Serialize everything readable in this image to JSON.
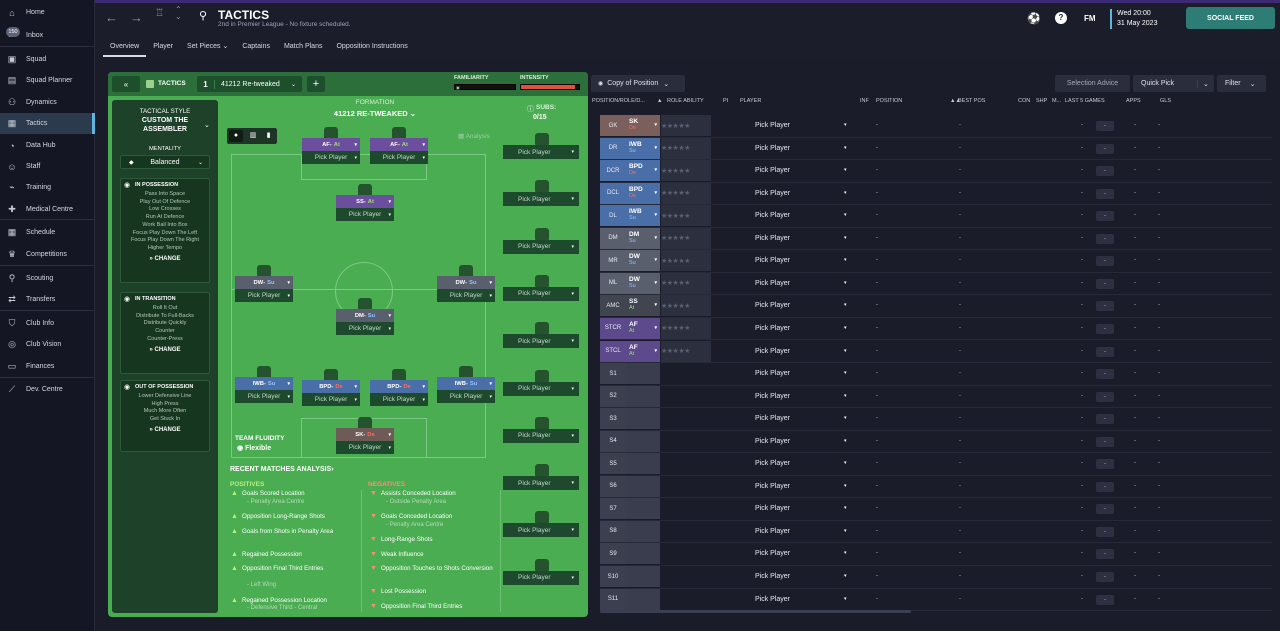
{
  "nav": {
    "items": [
      "Home",
      "Inbox",
      "Squad",
      "Squad Planner",
      "Dynamics",
      "Tactics",
      "Data Hub",
      "Staff",
      "Training",
      "Medical Centre",
      "Schedule",
      "Competitions",
      "Scouting",
      "Transfers",
      "Club Info",
      "Club Vision",
      "Finances",
      "Dev. Centre"
    ],
    "inbox_count": "150"
  },
  "header": {
    "title": "TACTICS",
    "subtitle": "2nd in Premier League - No fixture scheduled.",
    "fm": "FM",
    "time": "Wed 20:00",
    "date": "31 May 2023",
    "social": "SOCIAL FEED",
    "tabs": [
      "Overview",
      "Player",
      "Set Pieces ⌄",
      "Captains",
      "Match Plans",
      "Opposition Instructions"
    ]
  },
  "tactic": {
    "label": "TACTICS",
    "slot": "1",
    "name": "41212 Re-tweaked",
    "familiarity": "FAMILIARITY",
    "intensity": "INTENSITY",
    "intensity_level": 0.93,
    "formation_label": "FORMATION",
    "formation": "41212 RE-TWEAKED",
    "subs_label": "SUBS:",
    "subs": "0/15",
    "analysis": "Analysis"
  },
  "style": {
    "heading": "TACTICAL STYLE",
    "name": "CUSTOM THE ASSEMBLER",
    "mentality_label": "MENTALITY",
    "mentality": "Balanced",
    "change": "CHANGE",
    "in_possession": {
      "title": "IN POSSESSION",
      "items": [
        "Pass Into Space",
        "Play Out Of Defence",
        "Low Crosses",
        "Run At Defence",
        "Work Ball Into Box",
        "Focus Play Down The Left",
        "Focus Play Down The Right",
        "Higher Tempo"
      ]
    },
    "in_transition": {
      "title": "IN TRANSITION",
      "items": [
        "Roll It Out",
        "Distribute To Full-Backs",
        "Distribute Quickly",
        "Counter",
        "Counter-Press"
      ]
    },
    "out_possession": {
      "title": "OUT OF POSSESSION",
      "items": [
        "Lower Defensive Line",
        "High Press",
        "Much More Often",
        "Get Stuck In"
      ]
    }
  },
  "pitch": {
    "pick": "Pick Player",
    "fluidity_label": "TEAM FLUIDITY",
    "fluidity": "Flexible",
    "cards": [
      {
        "role": "AF",
        "duty": "At"
      },
      {
        "role": "AF",
        "duty": "At"
      },
      {
        "role": "SS",
        "duty": "At"
      },
      {
        "role": "DW",
        "duty": "Su"
      },
      {
        "role": "DW",
        "duty": "Su"
      },
      {
        "role": "DM",
        "duty": "Su"
      },
      {
        "role": "IWB",
        "duty": "Su"
      },
      {
        "role": "BPD",
        "duty": "De"
      },
      {
        "role": "BPD",
        "duty": "De"
      },
      {
        "role": "IWB",
        "duty": "Su"
      },
      {
        "role": "SK",
        "duty": "De"
      }
    ]
  },
  "analysis": {
    "title": "RECENT MATCHES ANALYSIS",
    "positives_label": "POSITIVES",
    "negatives_label": "NEGATIVES",
    "positives": [
      {
        "t": "Goals Scored Location",
        "s": "- Penalty Area Centre"
      },
      {
        "t": "Opposition Long-Range Shots",
        "s": ""
      },
      {
        "t": "Goals from Shots in Penalty Area",
        "s": ""
      },
      {
        "t": "Regained Possession",
        "s": ""
      },
      {
        "t": "Opposition Final Third Entries",
        "s": "- Left Wing"
      },
      {
        "t": "Regained Possession Location",
        "s": "- Defensive Third - Central"
      }
    ],
    "negatives": [
      {
        "t": "Assists Conceded Location",
        "s": "- Outside Penalty Area"
      },
      {
        "t": "Goals Conceded Location",
        "s": "- Penalty Area Centre"
      },
      {
        "t": "Long-Range Shots",
        "s": ""
      },
      {
        "t": "Weak Influence",
        "s": ""
      },
      {
        "t": "Opposition Touches to Shots Conversion",
        "s": ""
      },
      {
        "t": "Lost Possession",
        "s": ""
      },
      {
        "t": "Opposition Final Third Entries",
        "s": ""
      }
    ]
  },
  "right": {
    "copy_of_position": "Copy of Position",
    "selection_advice": "Selection Advice",
    "quick_pick": "Quick Pick",
    "filter": "Filter",
    "columns": [
      "POSITION/ROLE/D...",
      "ROLE ABILITY",
      "PI",
      "PLAYER",
      "INF",
      "POSITION",
      "BEST POS",
      "CON",
      "SHP",
      "M...",
      "LAST 5 GAMES",
      "APPS",
      "GLS"
    ],
    "dash": "-",
    "rows": [
      {
        "pos": "GK",
        "role": "SK",
        "duty": "De"
      },
      {
        "pos": "DR",
        "role": "IWB",
        "duty": "Su"
      },
      {
        "pos": "DCR",
        "role": "BPD",
        "duty": "De"
      },
      {
        "pos": "DCL",
        "role": "BPD",
        "duty": "De"
      },
      {
        "pos": "DL",
        "role": "IWB",
        "duty": "Su"
      },
      {
        "pos": "DM",
        "role": "DM",
        "duty": "Su"
      },
      {
        "pos": "MR",
        "role": "DW",
        "duty": "Su"
      },
      {
        "pos": "ML",
        "role": "DW",
        "duty": "Su"
      },
      {
        "pos": "AMC",
        "role": "SS",
        "duty": "At"
      },
      {
        "pos": "STCR",
        "role": "AF",
        "duty": "At"
      },
      {
        "pos": "STCL",
        "role": "AF",
        "duty": "At"
      },
      {
        "pos": "S1"
      },
      {
        "pos": "S2"
      },
      {
        "pos": "S3"
      },
      {
        "pos": "S4"
      },
      {
        "pos": "S5"
      },
      {
        "pos": "S6"
      },
      {
        "pos": "S7"
      },
      {
        "pos": "S8"
      },
      {
        "pos": "S9"
      },
      {
        "pos": "S10"
      },
      {
        "pos": "S11"
      }
    ]
  },
  "colors": {
    "accent": "#5fb4e0",
    "pitch": "#4bad52",
    "social": "#2e7c76"
  }
}
